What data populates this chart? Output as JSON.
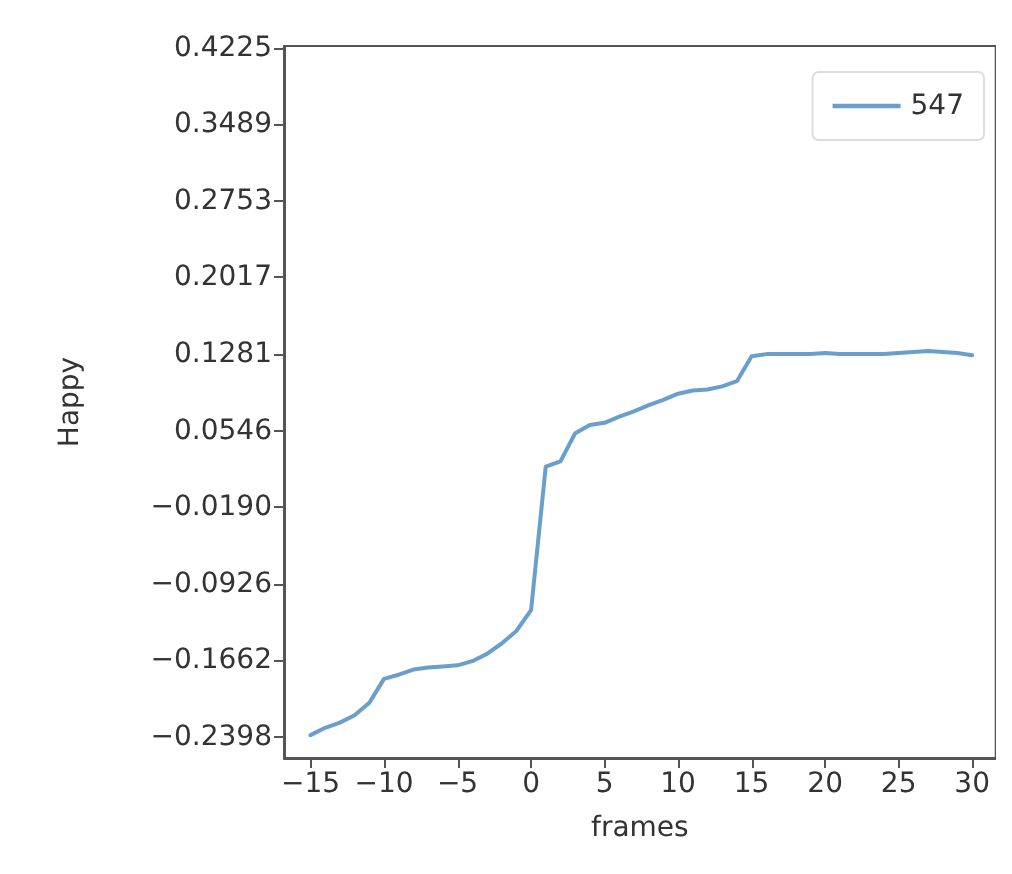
{
  "chart_data": {
    "type": "line",
    "xlabel": "frames",
    "ylabel": "Happy",
    "x": [
      -15,
      -14,
      -13,
      -12,
      -11,
      -10,
      -9,
      -8,
      -7,
      -6,
      -5,
      -4,
      -3,
      -2,
      -1,
      0,
      1,
      2,
      3,
      4,
      5,
      6,
      7,
      8,
      9,
      10,
      11,
      12,
      13,
      14,
      15,
      16,
      17,
      18,
      19,
      20,
      21,
      22,
      23,
      24,
      25,
      26,
      27,
      28,
      29,
      30
    ],
    "series": [
      {
        "name": "547",
        "color": "#6a9fcb",
        "values": [
          -0.238,
          -0.231,
          -0.226,
          -0.219,
          -0.207,
          -0.184,
          -0.18,
          -0.175,
          -0.173,
          -0.172,
          -0.171,
          -0.167,
          -0.16,
          -0.15,
          -0.138,
          -0.118,
          0.02,
          0.025,
          0.052,
          0.06,
          0.062,
          0.068,
          0.073,
          0.079,
          0.084,
          0.09,
          0.093,
          0.094,
          0.097,
          0.102,
          0.126,
          0.128,
          0.128,
          0.128,
          0.128,
          0.129,
          0.128,
          0.128,
          0.128,
          0.128,
          0.129,
          0.13,
          0.131,
          0.13,
          0.129,
          0.127
        ]
      }
    ],
    "xlim": [
      -16.8,
      31.6
    ],
    "xticks": [
      -15,
      -10,
      -5,
      0,
      5,
      10,
      15,
      20,
      25,
      30
    ],
    "ylim": [
      -0.26,
      0.424
    ],
    "yticks": [
      -0.2398,
      -0.1662,
      -0.0926,
      {
        "value": -0.019,
        "label": "−0.0190"
      },
      0.0546,
      0.1281,
      0.2017,
      0.2753,
      0.3489,
      0.4225
    ],
    "legend": "top right"
  }
}
